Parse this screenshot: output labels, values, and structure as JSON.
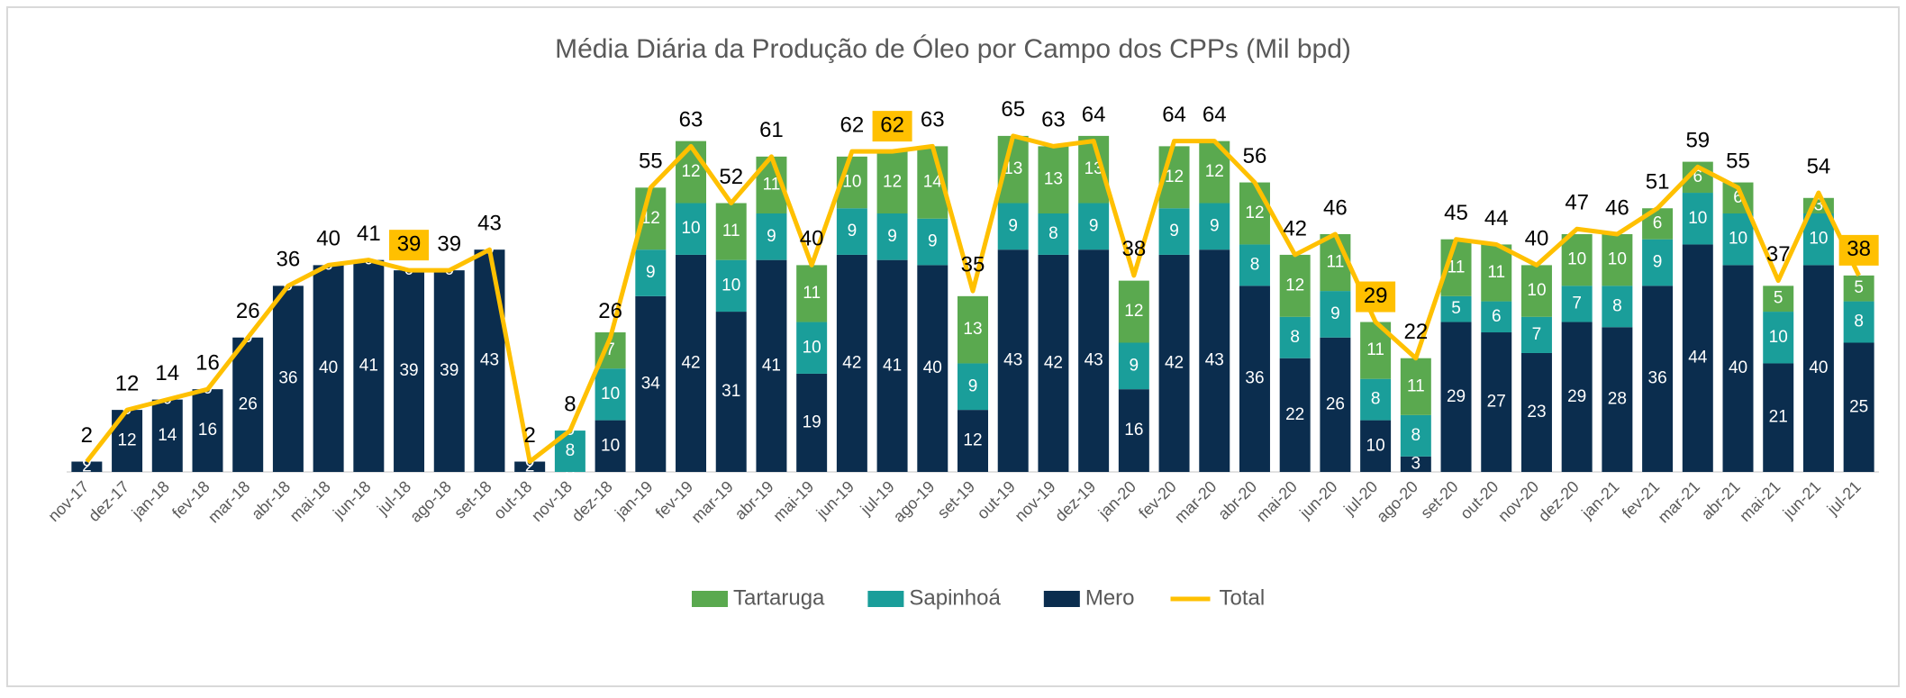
{
  "chart_data": {
    "type": "stacked_bar_line",
    "title": "Média Diária da Produção de Óleo por Campo dos CPPs (Mil bpd)",
    "categories": [
      "nov-17",
      "dez-17",
      "jan-18",
      "fev-18",
      "mar-18",
      "abr-18",
      "mai-18",
      "jun-18",
      "jul-18",
      "ago-18",
      "set-18",
      "out-18",
      "nov-18",
      "dez-18",
      "jan-19",
      "fev-19",
      "mar-19",
      "abr-19",
      "mai-19",
      "jun-19",
      "jul-19",
      "ago-19",
      "set-19",
      "out-19",
      "nov-19",
      "dez-19",
      "jan-20",
      "fev-20",
      "mar-20",
      "abr-20",
      "mai-20",
      "jun-20",
      "jul-20",
      "ago-20",
      "set-20",
      "out-20",
      "nov-20",
      "dez-20",
      "jan-21",
      "fev-21",
      "mar-21",
      "abr-21",
      "mai-21",
      "jun-21",
      "jul-21"
    ],
    "series": [
      {
        "name": "Mero",
        "color": "#0b2d4e",
        "values": [
          2,
          12,
          14,
          16,
          26,
          36,
          40,
          41,
          39,
          39,
          43,
          2,
          0,
          10,
          34,
          42,
          31,
          41,
          19,
          42,
          41,
          40,
          12,
          43,
          42,
          43,
          16,
          42,
          43,
          36,
          22,
          26,
          10,
          3,
          29,
          27,
          23,
          29,
          28,
          36,
          44,
          40,
          21,
          40,
          25
        ]
      },
      {
        "name": "Sapinhoá",
        "color": "#1a9e9a",
        "values": [
          null,
          null,
          null,
          null,
          null,
          null,
          null,
          null,
          null,
          null,
          null,
          null,
          8,
          10,
          9,
          10,
          10,
          9,
          10,
          9,
          9,
          9,
          9,
          9,
          8,
          9,
          9,
          9,
          9,
          8,
          8,
          9,
          8,
          8,
          5,
          6,
          7,
          7,
          8,
          9,
          10,
          10,
          10,
          10,
          8
        ]
      },
      {
        "name": "Tartaruga",
        "color": "#5aa94f",
        "values": [
          0,
          0,
          0,
          0,
          0,
          0,
          0,
          0,
          0,
          0,
          0,
          0,
          0,
          7,
          12,
          12,
          11,
          11,
          11,
          10,
          12,
          14,
          13,
          13,
          13,
          13,
          12,
          12,
          12,
          12,
          12,
          11,
          11,
          11,
          11,
          11,
          10,
          10,
          10,
          6,
          6,
          6,
          5,
          3,
          5
        ]
      },
      {
        "name": "Total",
        "color": "#ffc000",
        "type": "line",
        "values": [
          2,
          12,
          14,
          16,
          26,
          36,
          40,
          41,
          39,
          39,
          43,
          2,
          8,
          26,
          55,
          63,
          52,
          61,
          40,
          62,
          62,
          63,
          35,
          65,
          63,
          64,
          38,
          64,
          64,
          56,
          42,
          46,
          29,
          22,
          45,
          44,
          40,
          47,
          46,
          51,
          59,
          55,
          37,
          54,
          38
        ]
      }
    ],
    "highlighted": [
      "jul-18",
      "jul-19",
      "jul-20",
      "jul-21"
    ],
    "legend_order": [
      "Tartaruga",
      "Sapinhoá",
      "Mero",
      "Total"
    ],
    "legend": "bottom"
  }
}
